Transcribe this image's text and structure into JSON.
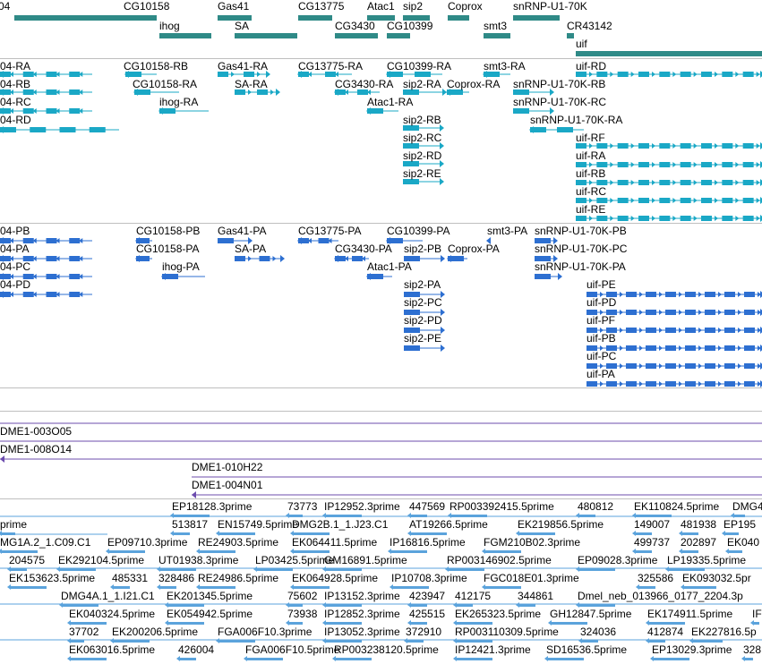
{
  "colors": {
    "gene": "#2f8a87",
    "transcript": "#1aa8c6",
    "protein": "#2d6fd1",
    "clone": "#6c4cae",
    "est": "#5ba3dc",
    "separator": "#bfbfbf"
  },
  "tracks": {
    "genes": [
      {
        "name": "04"
      },
      {
        "name": "CG10158"
      },
      {
        "name": "ihog"
      },
      {
        "name": "Gas41"
      },
      {
        "name": "SA"
      },
      {
        "name": "CG13775"
      },
      {
        "name": "CG3430"
      },
      {
        "name": "Atac1"
      },
      {
        "name": "sip2"
      },
      {
        "name": "CG10399"
      },
      {
        "name": "Coprox"
      },
      {
        "name": "smt3"
      },
      {
        "name": "snRNP-U1-70K"
      },
      {
        "name": "CR43142"
      },
      {
        "name": "uif"
      }
    ],
    "transcripts": [
      {
        "name": "04-RA"
      },
      {
        "name": "04-RB"
      },
      {
        "name": "04-RC"
      },
      {
        "name": "04-RD"
      },
      {
        "name": "CG10158-RB"
      },
      {
        "name": "CG10158-RA"
      },
      {
        "name": "ihog-RA"
      },
      {
        "name": "Gas41-RA"
      },
      {
        "name": "SA-RA"
      },
      {
        "name": "CG13775-RA"
      },
      {
        "name": "CG3430-RA"
      },
      {
        "name": "Atac1-RA"
      },
      {
        "name": "CG10399-RA"
      },
      {
        "name": "sip2-RA"
      },
      {
        "name": "sip2-RB"
      },
      {
        "name": "sip2-RC"
      },
      {
        "name": "sip2-RD"
      },
      {
        "name": "sip2-RE"
      },
      {
        "name": "Coprox-RA"
      },
      {
        "name": "smt3-RA"
      },
      {
        "name": "snRNP-U1-70K-RB"
      },
      {
        "name": "snRNP-U1-70K-RC"
      },
      {
        "name": "snRNP-U1-70K-RA"
      },
      {
        "name": "uif-RD"
      },
      {
        "name": "uif-RF"
      },
      {
        "name": "uif-RA"
      },
      {
        "name": "uif-RB"
      },
      {
        "name": "uif-RC"
      },
      {
        "name": "uif-RE"
      }
    ],
    "proteins": [
      {
        "name": "04-PB"
      },
      {
        "name": "04-PA"
      },
      {
        "name": "04-PC"
      },
      {
        "name": "04-PD"
      },
      {
        "name": "CG10158-PB"
      },
      {
        "name": "CG10158-PA"
      },
      {
        "name": "ihog-PA"
      },
      {
        "name": "Gas41-PA"
      },
      {
        "name": "SA-PA"
      },
      {
        "name": "CG13775-PA"
      },
      {
        "name": "CG3430-PA"
      },
      {
        "name": "Atac1-PA"
      },
      {
        "name": "CG10399-PA"
      },
      {
        "name": "sip2-PB"
      },
      {
        "name": "sip2-PA"
      },
      {
        "name": "sip2-PC"
      },
      {
        "name": "sip2-PD"
      },
      {
        "name": "sip2-PE"
      },
      {
        "name": "Coprox-PA"
      },
      {
        "name": "smt3-PA"
      },
      {
        "name": "snRNP-U1-70K-PB"
      },
      {
        "name": "snRNP-U1-70K-PC"
      },
      {
        "name": "snRNP-U1-70K-PA"
      },
      {
        "name": "uif-PE"
      },
      {
        "name": "uif-PD"
      },
      {
        "name": "uif-PF"
      },
      {
        "name": "uif-PB"
      },
      {
        "name": "uif-PC"
      },
      {
        "name": "uif-PA"
      }
    ],
    "clones": [
      {
        "name": "DME1-003O05"
      },
      {
        "name": "DME1-008O14"
      },
      {
        "name": "DME1-010H22"
      },
      {
        "name": "DME1-004N01"
      }
    ],
    "ests": [
      "EP18128.3prime",
      "73773",
      "IP12952.3prime",
      "447569",
      "RP003392415.5prime",
      "480812",
      "EK110824.5prime",
      "DMG4",
      "prime",
      "513817",
      "EN15749.5prime",
      "DMG2B.1_1.J23.C1",
      "AT19266.5prime",
      "EK219856.5prime",
      "149007",
      "481938",
      "EP195",
      "MG1A.2_1.C09.C1",
      "EP09710.3prime",
      "RE24903.5prime",
      "EK064411.5prime",
      "IP16816.5prime",
      "FGM210B02.3prime",
      "499737",
      "202897",
      "EK040",
      "204575",
      "EK292104.5prime",
      "UT01938.3prime",
      "LP03425.5prime",
      "GM16891.5prime",
      "RP003146902.5prime",
      "EP09028.3prime",
      "LP19335.5prime",
      "EK153623.5prime",
      "485331",
      "328486",
      "RE24986.5prime",
      "EK064928.5prime",
      "IP10708.3prime",
      "FGC018E01.3prime",
      "325586",
      "EK093032.5pr",
      "DMG4A.1_1.I21.C1",
      "EK201345.5prime",
      "75602",
      "IP13152.3prime",
      "423947",
      "412175",
      "344861",
      "Dmel_neb_013966_0177_2204.3p",
      "EK040324.5prime",
      "EK054942.5prime",
      "73938",
      "IP12852.3prime",
      "425515",
      "EK265323.5prime",
      "GH12847.5prime",
      "EK174911.5prime",
      "IF",
      "37702",
      "EK200206.5prime",
      "FGA006F10.3prime",
      "IP13052.3prime",
      "372910",
      "RP003110309.5prime",
      "324036",
      "412874",
      "EK227816.5p",
      "EK063016.5prime",
      "426004",
      "FGA006F10.5prime",
      "RP003238120.5prime",
      "IP12421.3prime",
      "SD16536.5prime",
      "EP13029.3prime",
      "328"
    ]
  }
}
